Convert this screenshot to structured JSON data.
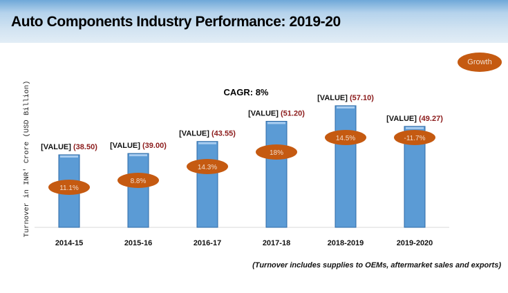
{
  "header": {
    "title": "Auto Components Industry Performance: 2019-20"
  },
  "legend": {
    "growth_label": "Growth"
  },
  "footnote": "(Turnover includes supplies to OEMs, aftermarket sales and exports)",
  "chart_data": {
    "type": "bar",
    "title": "",
    "annotation": "CAGR: 8%",
    "xlabel": "",
    "ylabel": "Turnover in INR' Crore (USD Billion)",
    "categories": [
      "2014-15",
      "2015-16",
      "2016-17",
      "2017-18",
      "2018-2019",
      "2019-2020"
    ],
    "values": [
      38.5,
      39.0,
      43.55,
      51.2,
      57.1,
      49.27
    ],
    "value_labels": [
      "(38.50)",
      "(39.00)",
      "(43.55)",
      "(51.20)",
      "(57.10)",
      "(49.27)"
    ],
    "label_prefix": "[VALUE]",
    "growth": [
      "11.1%",
      "8.8%",
      "14.3%",
      "18%",
      "14.5%",
      "-11.7%"
    ],
    "ylim": [
      11,
      66
    ],
    "grid": false,
    "legend_position": "top-right",
    "colors": {
      "bar": "#5b9bd5",
      "growth_marker": "#c55a11",
      "value_label": "#8b1a1a"
    }
  }
}
